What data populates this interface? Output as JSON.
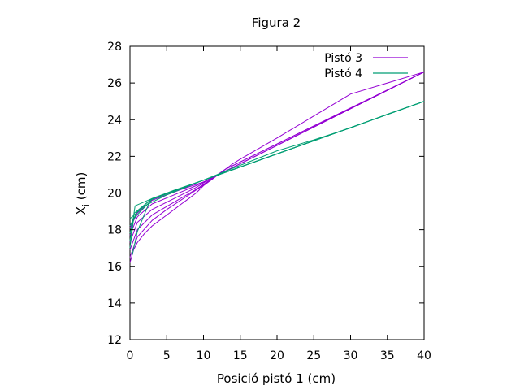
{
  "chart_data": {
    "type": "line",
    "title": "Figura 2",
    "xlabel": "Posició pistó 1 (cm)",
    "ylabel": {
      "base": "X",
      "subscript": "i",
      "suffix": " (cm)"
    },
    "xlim": [
      0,
      40
    ],
    "ylim": [
      12,
      28
    ],
    "xticks": [
      0,
      5,
      10,
      15,
      20,
      25,
      30,
      35,
      40
    ],
    "yticks": [
      12,
      14,
      16,
      18,
      20,
      22,
      24,
      26,
      28
    ],
    "grid": false,
    "legend_position": "top-right",
    "series": [
      {
        "name": "Pistó 3",
        "color": "#9400d3",
        "points": [
          [
            0,
            16.2
          ],
          [
            0.5,
            16.9
          ],
          [
            1,
            17.3
          ],
          [
            2,
            17.8
          ],
          [
            3,
            18.2
          ],
          [
            4,
            18.5
          ],
          [
            5,
            18.8
          ],
          [
            6,
            19.1
          ],
          [
            7,
            19.4
          ],
          [
            8,
            19.7
          ],
          [
            9,
            20.0
          ],
          [
            10,
            20.4
          ],
          [
            11,
            20.7
          ],
          [
            12,
            21.0
          ],
          [
            13,
            21.3
          ],
          [
            14,
            21.6
          ],
          [
            15,
            21.85
          ],
          [
            20,
            23.0
          ],
          [
            25,
            24.2
          ],
          [
            30,
            25.4
          ],
          [
            35,
            26.0
          ],
          [
            40,
            26.6
          ]
        ],
        "extra_curves": [
          [
            [
              0,
              16.5
            ],
            [
              1,
              17.6
            ],
            [
              3,
              18.5
            ],
            [
              5,
              19.1
            ],
            [
              8,
              19.9
            ],
            [
              11,
              20.7
            ],
            [
              13,
              21.3
            ],
            [
              40,
              26.6
            ]
          ],
          [
            [
              0,
              16.9
            ],
            [
              1,
              18.0
            ],
            [
              3,
              18.8
            ],
            [
              6,
              19.5
            ],
            [
              9,
              20.2
            ],
            [
              11,
              20.75
            ],
            [
              13,
              21.3
            ],
            [
              40,
              26.6
            ]
          ],
          [
            [
              0,
              17.3
            ],
            [
              1,
              18.4
            ],
            [
              3,
              19.1
            ],
            [
              6,
              19.7
            ],
            [
              9,
              20.3
            ],
            [
              11,
              20.8
            ],
            [
              40,
              26.6
            ]
          ],
          [
            [
              0,
              17.7
            ],
            [
              1,
              18.7
            ],
            [
              3,
              19.4
            ],
            [
              6,
              19.9
            ],
            [
              9,
              20.4
            ],
            [
              11,
              20.8
            ],
            [
              40,
              26.6
            ]
          ],
          [
            [
              0,
              18.1
            ],
            [
              1,
              18.9
            ],
            [
              3,
              19.6
            ],
            [
              7,
              20.2
            ],
            [
              10,
              20.6
            ],
            [
              40,
              26.6
            ]
          ]
        ]
      },
      {
        "name": "Pistó 4",
        "color": "#009e73",
        "points": [
          [
            0,
            17.4
          ],
          [
            0.7,
            19.3
          ],
          [
            3,
            19.7
          ],
          [
            6,
            20.15
          ],
          [
            10,
            20.7
          ],
          [
            14,
            21.35
          ],
          [
            20,
            22.3
          ],
          [
            25,
            22.9
          ],
          [
            30,
            23.55
          ],
          [
            35,
            24.3
          ],
          [
            40,
            25.0
          ]
        ],
        "extra_curves": [
          [
            [
              0,
              17.0
            ],
            [
              0.5,
              18.6
            ],
            [
              3,
              19.65
            ],
            [
              10,
              20.7
            ],
            [
              40,
              25.0
            ]
          ],
          [
            [
              0,
              17.8
            ],
            [
              0.6,
              18.9
            ],
            [
              3,
              19.7
            ],
            [
              10,
              20.7
            ],
            [
              40,
              25.0
            ]
          ],
          [
            [
              0,
              18.2
            ],
            [
              1,
              19.0
            ],
            [
              3,
              19.7
            ],
            [
              10,
              20.7
            ],
            [
              40,
              25.0
            ]
          ],
          [
            [
              0,
              18.6
            ],
            [
              2,
              19.3
            ],
            [
              5,
              19.9
            ],
            [
              10,
              20.7
            ],
            [
              40,
              25.0
            ]
          ],
          [
            [
              0.3,
              16.6
            ],
            [
              1,
              17.9
            ],
            [
              2.8,
              19.65
            ],
            [
              10,
              20.7
            ],
            [
              40,
              25.0
            ]
          ]
        ]
      }
    ]
  }
}
